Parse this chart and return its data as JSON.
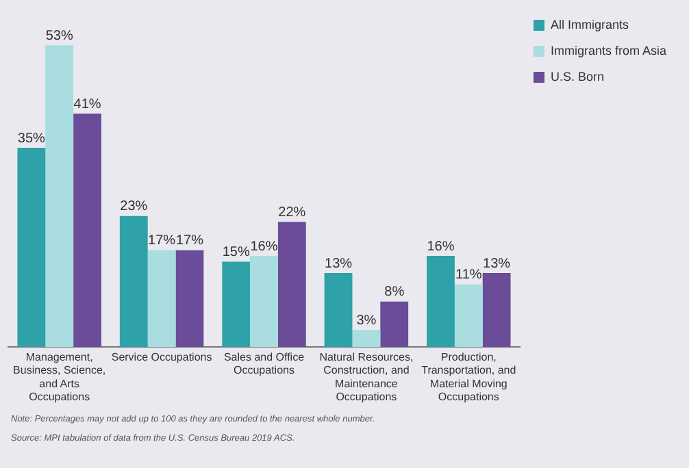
{
  "chart_data": {
    "type": "bar",
    "categories": [
      "Management,\nBusiness, Science,\nand Arts\nOccupations",
      "Service Occupations",
      "Sales and Office\nOccupations",
      "Natural Resources,\nConstruction, and\nMaintenance\nOccupations",
      "Production,\nTransportation, and\nMaterial Moving\nOccupations"
    ],
    "series": [
      {
        "name": "All Immigrants",
        "color": "#2ea2a8",
        "values": [
          35,
          23,
          15,
          13,
          16
        ],
        "value_labels": [
          "35%",
          "23%",
          "15%",
          "13%",
          "16%"
        ]
      },
      {
        "name": "Immigrants from Asia",
        "color": "#a9dde0",
        "values": [
          53,
          17,
          16,
          3,
          11
        ],
        "value_labels": [
          "53%",
          "17%",
          "16%",
          "3%",
          "11%"
        ]
      },
      {
        "name": "U.S. Born",
        "color": "#6a4c98",
        "values": [
          41,
          17,
          22,
          8,
          13
        ],
        "value_labels": [
          "41%",
          "17%",
          "22%",
          "8%",
          "13%"
        ]
      }
    ],
    "legend": "top right",
    "annotations": [
      "Note: Percentages may not add up to 100 as they are rounded to the nearest whole number.",
      "Source: MPI tabulation of data from the U.S. Census Bureau 2019 ACS."
    ]
  }
}
